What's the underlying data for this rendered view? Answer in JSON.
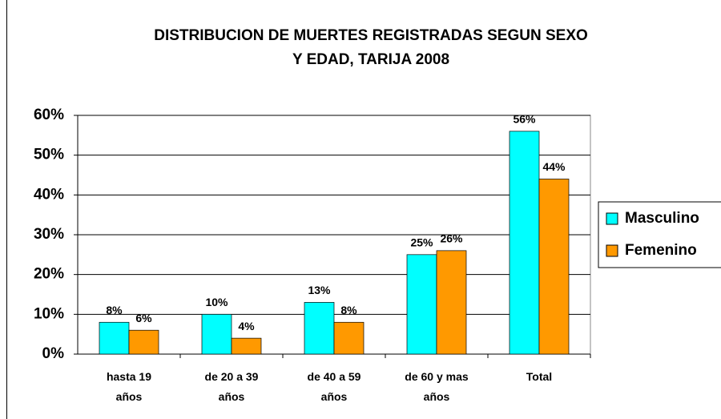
{
  "chart_data": {
    "type": "bar",
    "title": "DISTRIBUCION DE MUERTES REGISTRADAS SEGUN SEXO\nY EDAD, TARIJA 2008",
    "categories": [
      "hasta 19\naños",
      "de 20 a 39\naños",
      "de 40 a 59\naños",
      "de 60 y mas\naños",
      "Total"
    ],
    "series": [
      {
        "name": "Masculino",
        "color": "#00ffff",
        "values": [
          8,
          10,
          13,
          25,
          56
        ],
        "value_labels": [
          "8%",
          "10%",
          "13%",
          "25%",
          "56%"
        ]
      },
      {
        "name": "Femenino",
        "color": "#ff9900",
        "values": [
          6,
          4,
          8,
          26,
          44
        ],
        "value_labels": [
          "6%",
          "4%",
          "8%",
          "26%",
          "44%"
        ]
      }
    ],
    "ylim": [
      0,
      60
    ],
    "yticks": [
      {
        "value": 0,
        "label": "0%"
      },
      {
        "value": 10,
        "label": "10%"
      },
      {
        "value": 20,
        "label": "20%"
      },
      {
        "value": 30,
        "label": "30%"
      },
      {
        "value": 40,
        "label": "40%"
      },
      {
        "value": 50,
        "label": "50%"
      },
      {
        "value": 60,
        "label": "60%"
      }
    ],
    "grid": true,
    "legend": "right"
  }
}
